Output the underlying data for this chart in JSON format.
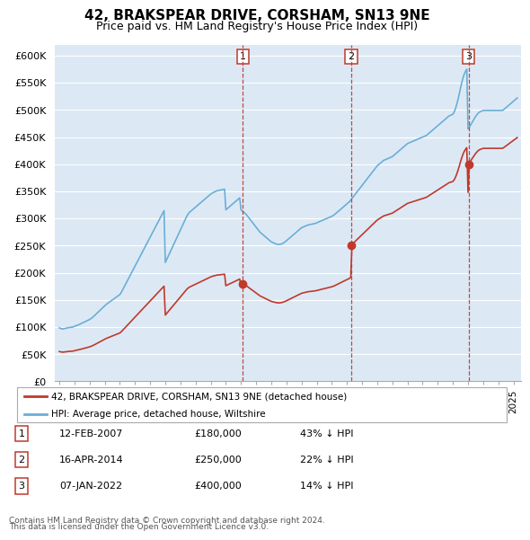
{
  "title": "42, BRAKSPEAR DRIVE, CORSHAM, SN13 9NE",
  "subtitle": "Price paid vs. HM Land Registry's House Price Index (HPI)",
  "background_color": "#ffffff",
  "plot_bg_color": "#dce9f5",
  "grid_color": "#ffffff",
  "hpi_color": "#6baed6",
  "price_color": "#c0392b",
  "sale_line_color": "#c0392b",
  "ylim": [
    0,
    620000
  ],
  "yticks": [
    0,
    50000,
    100000,
    150000,
    200000,
    250000,
    300000,
    350000,
    400000,
    450000,
    500000,
    550000,
    600000
  ],
  "ytick_labels": [
    "£0",
    "£50K",
    "£100K",
    "£150K",
    "£200K",
    "£250K",
    "£300K",
    "£350K",
    "£400K",
    "£450K",
    "£500K",
    "£550K",
    "£600K"
  ],
  "sales": [
    {
      "date": "12-FEB-2007",
      "price": 180000,
      "year": 2007.12,
      "label": "1",
      "pct": "43% ↓ HPI"
    },
    {
      "date": "16-APR-2014",
      "price": 250000,
      "year": 2014.29,
      "label": "2",
      "pct": "22% ↓ HPI"
    },
    {
      "date": "07-JAN-2022",
      "price": 400000,
      "year": 2022.03,
      "label": "3",
      "pct": "14% ↓ HPI"
    }
  ],
  "legend_property": "42, BRAKSPEAR DRIVE, CORSHAM, SN13 9NE (detached house)",
  "legend_hpi": "HPI: Average price, detached house, Wiltshire",
  "footer1": "Contains HM Land Registry data © Crown copyright and database right 2024.",
  "footer2": "This data is licensed under the Open Government Licence v3.0.",
  "hpi_data_monthly": {
    "start_year": 1995,
    "start_month": 1,
    "values": [
      98622,
      97521,
      96998,
      96476,
      97259,
      97624,
      98412,
      98875,
      99234,
      99567,
      99821,
      100234,
      101456,
      102345,
      103234,
      104123,
      105012,
      106234,
      107345,
      108456,
      109567,
      110678,
      111789,
      112900,
      114012,
      115634,
      117256,
      119234,
      121456,
      123678,
      125900,
      128123,
      130345,
      132567,
      134789,
      137012,
      139234,
      141456,
      143234,
      144912,
      146589,
      148267,
      149945,
      151622,
      153300,
      154978,
      156655,
      158333,
      160012,
      163456,
      167900,
      172345,
      176789,
      181234,
      185678,
      190123,
      194567,
      199012,
      203456,
      207900,
      212345,
      216789,
      221234,
      225678,
      230123,
      234567,
      239012,
      243456,
      247900,
      252345,
      256789,
      261234,
      265678,
      270123,
      274567,
      279012,
      283456,
      287900,
      292345,
      296789,
      301234,
      305678,
      310123,
      314567,
      219000,
      224000,
      229000,
      234000,
      239000,
      244000,
      249000,
      254000,
      259000,
      264000,
      269000,
      274000,
      279000,
      284000,
      289000,
      294000,
      299000,
      304000,
      308000,
      311000,
      313000,
      315000,
      317000,
      319000,
      321000,
      323000,
      325000,
      327000,
      329000,
      331000,
      333000,
      335000,
      337000,
      339000,
      341000,
      343000,
      345000,
      346500,
      348000,
      349000,
      350000,
      351000,
      351500,
      352000,
      352500,
      353000,
      353500,
      354000,
      316000,
      318000,
      320000,
      322000,
      324000,
      326000,
      328000,
      330000,
      332000,
      334000,
      336000,
      338000,
      316000,
      314000,
      312000,
      310000,
      308000,
      305000,
      302000,
      299000,
      296000,
      293000,
      290000,
      287000,
      284000,
      281000,
      278000,
      275000,
      273000,
      271000,
      269000,
      267000,
      265000,
      263000,
      261000,
      259000,
      257000,
      256000,
      255000,
      254000,
      253000,
      252500,
      252000,
      252500,
      253000,
      254000,
      255500,
      257000,
      259000,
      261000,
      263000,
      265000,
      267000,
      269000,
      271000,
      273000,
      275000,
      277000,
      279000,
      281000,
      283000,
      284000,
      285000,
      286000,
      287000,
      288000,
      288500,
      289000,
      289500,
      290000,
      290500,
      291000,
      292000,
      293000,
      294000,
      295000,
      296000,
      297000,
      298000,
      299000,
      300000,
      301000,
      302000,
      303000,
      304000,
      305500,
      307000,
      309000,
      311000,
      313000,
      315000,
      317000,
      319000,
      321000,
      323000,
      325000,
      327000,
      329000,
      331000,
      334000,
      337000,
      340000,
      343000,
      346000,
      349000,
      352000,
      355000,
      358000,
      361000,
      364000,
      367000,
      370000,
      373000,
      376000,
      379000,
      382000,
      385000,
      388000,
      391000,
      394000,
      397000,
      399000,
      401000,
      403000,
      405000,
      407000,
      408000,
      409000,
      410000,
      411000,
      412000,
      413000,
      414000,
      416000,
      418000,
      420000,
      422000,
      424000,
      426000,
      428000,
      430000,
      432000,
      434000,
      436000,
      438000,
      439000,
      440000,
      441000,
      442000,
      443000,
      444000,
      445000,
      446000,
      447000,
      448000,
      449000,
      450000,
      451000,
      452000,
      453000,
      455000,
      457000,
      459000,
      461000,
      463000,
      465000,
      467000,
      469000,
      471000,
      473000,
      475000,
      477000,
      479000,
      481000,
      483000,
      485000,
      487000,
      489000,
      490000,
      491000,
      492000,
      496000,
      502000,
      510000,
      519000,
      529000,
      540000,
      550000,
      559000,
      566000,
      571000,
      575000,
      465000,
      468000,
      472000,
      476000,
      480000,
      484000,
      488000,
      491000,
      494000,
      496000,
      497000,
      498000,
      499000,
      499000,
      499000,
      499000,
      499000,
      499000,
      499000,
      499000,
      499000,
      499000,
      499000,
      499000,
      499000,
      499000,
      499000,
      499000,
      500000,
      502000,
      504000,
      506000,
      508000,
      510000,
      512000,
      514000,
      516000,
      518000,
      520000,
      522000
    ]
  }
}
